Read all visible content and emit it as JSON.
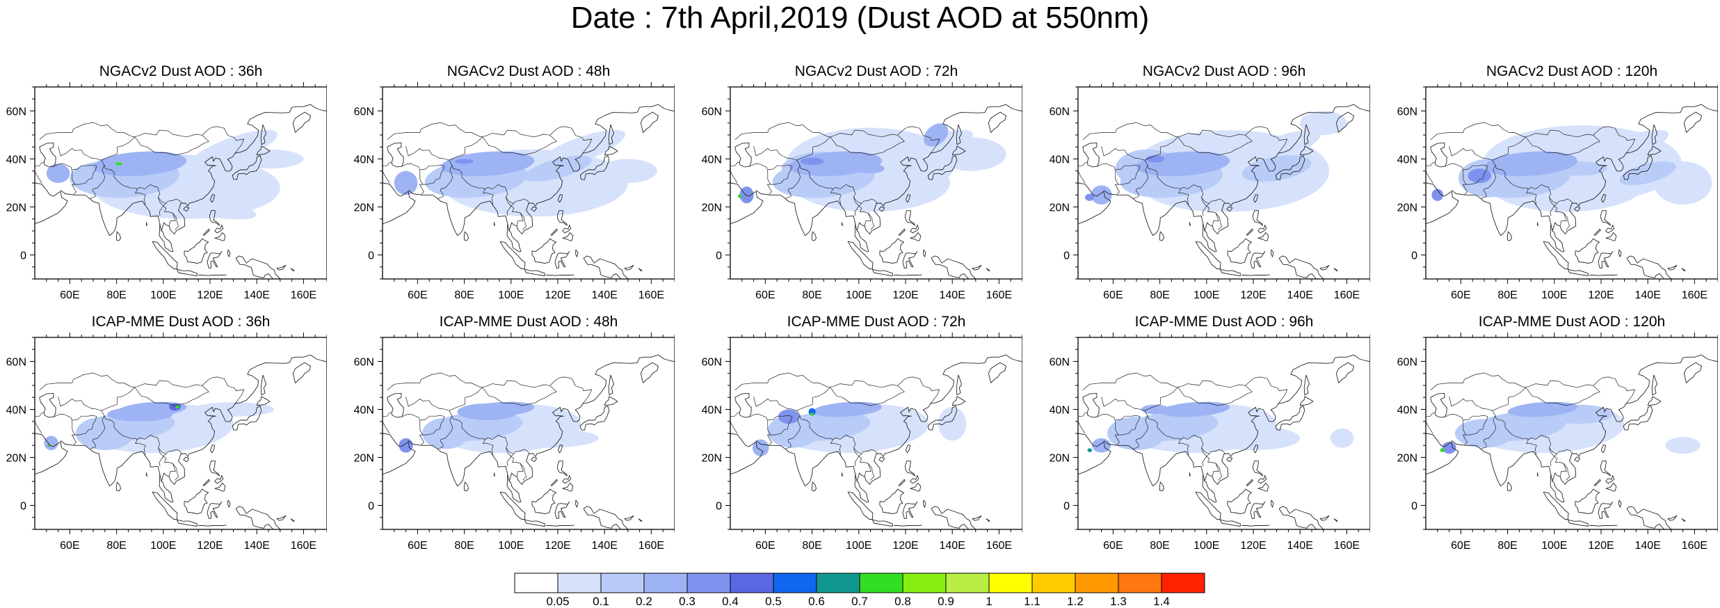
{
  "title": "Date : 7th April,2019 (Dust AOD at 550nm)",
  "panels": [
    {
      "title": "NGACv2 Dust AOD : 36h",
      "model": "ngac",
      "lead": 36
    },
    {
      "title": "NGACv2 Dust AOD : 48h",
      "model": "ngac",
      "lead": 48
    },
    {
      "title": "NGACv2 Dust AOD : 72h",
      "model": "ngac",
      "lead": 72
    },
    {
      "title": "NGACv2 Dust AOD : 96h",
      "model": "ngac",
      "lead": 96
    },
    {
      "title": "NGACv2 Dust AOD : 120h",
      "model": "ngac",
      "lead": 120
    },
    {
      "title": "ICAP-MME Dust AOD : 36h",
      "model": "icap",
      "lead": 36
    },
    {
      "title": "ICAP-MME Dust AOD : 48h",
      "model": "icap",
      "lead": 48
    },
    {
      "title": "ICAP-MME Dust AOD : 72h",
      "model": "icap",
      "lead": 72
    },
    {
      "title": "ICAP-MME Dust AOD : 96h",
      "model": "icap",
      "lead": 96
    },
    {
      "title": "ICAP-MME Dust AOD : 120h",
      "model": "icap",
      "lead": 120
    }
  ],
  "map": {
    "lon_range": [
      45,
      170
    ],
    "lat_range": [
      -10,
      70
    ],
    "lon_ticks": [
      60,
      80,
      100,
      120,
      140,
      160
    ],
    "lon_tick_labels": [
      "60E",
      "80E",
      "100E",
      "120E",
      "140E",
      "160E"
    ],
    "lat_ticks": [
      0,
      20,
      40,
      60
    ],
    "lat_tick_labels": [
      "0",
      "20N",
      "40N",
      "60N"
    ]
  },
  "colorbar": {
    "labels": [
      "0.05",
      "0.1",
      "0.2",
      "0.3",
      "0.4",
      "0.5",
      "0.6",
      "0.7",
      "0.8",
      "0.9",
      "1",
      "1.1",
      "1.2",
      "1.3",
      "1.4"
    ],
    "colors": [
      "#ffffff",
      "#d6e2fb",
      "#b9ccf8",
      "#9eb3f4",
      "#7f93ee",
      "#5b67e3",
      "#1166ee",
      "#11998f",
      "#33dd22",
      "#88ee11",
      "#bbee44",
      "#ffff00",
      "#ffcc00",
      "#ff9900",
      "#ff7711",
      "#ff2200"
    ]
  }
}
